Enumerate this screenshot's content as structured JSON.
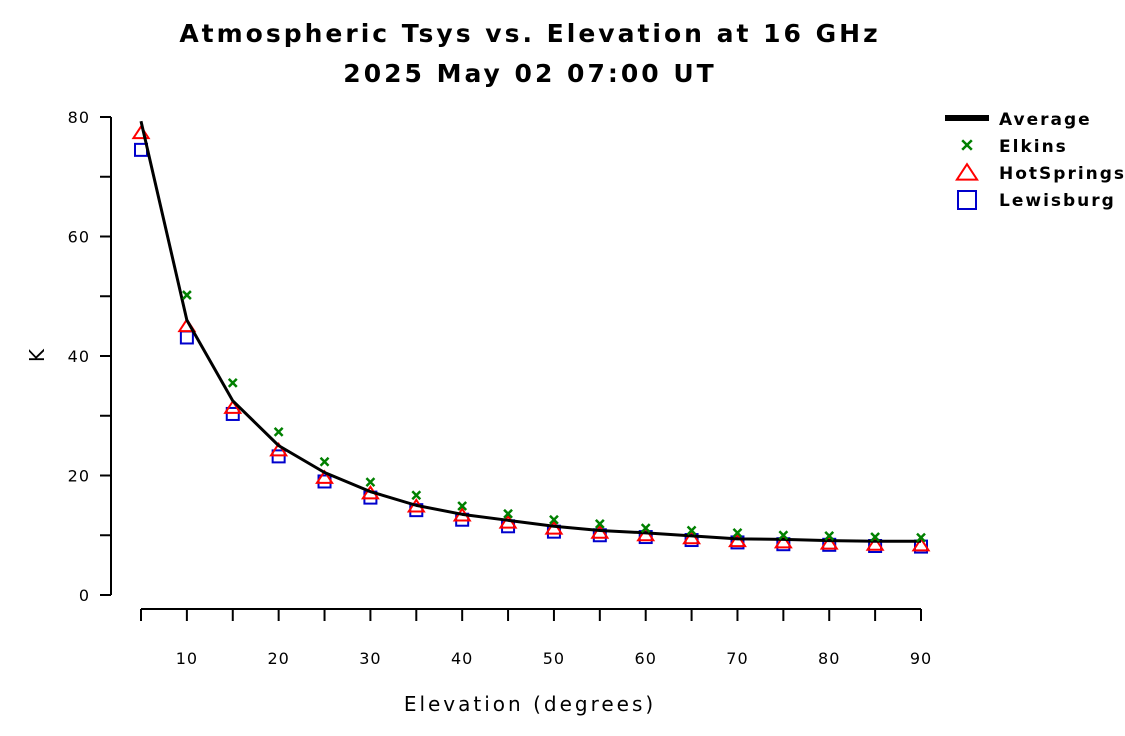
{
  "chart_data": {
    "type": "line",
    "title": "Atmospheric Tsys vs. Elevation at 16 GHz",
    "subtitle": "2025 May 02 07:00 UT",
    "xlabel": "Elevation (degrees)",
    "ylabel": "K",
    "xlim": [
      5,
      90
    ],
    "ylim": [
      0,
      80
    ],
    "x_ticks": [
      "10",
      "20",
      "30",
      "40",
      "50",
      "60",
      "70",
      "80",
      "90"
    ],
    "y_ticks": [
      "0",
      "20",
      "40",
      "60",
      "80"
    ],
    "x": [
      5,
      10,
      15,
      20,
      25,
      30,
      35,
      40,
      45,
      50,
      55,
      60,
      65,
      70,
      75,
      80,
      85,
      90
    ],
    "series": [
      {
        "name": "Average",
        "marker": "line",
        "color": "#000000",
        "values": [
          79.3,
          46.0,
          32.5,
          25.0,
          20.5,
          17.3,
          15.0,
          13.5,
          12.5,
          11.5,
          10.8,
          10.4,
          9.9,
          9.4,
          9.3,
          9.1,
          9.0,
          9.0
        ]
      },
      {
        "name": "Elkins",
        "marker": "x",
        "color": "#008000",
        "values": [
          null,
          50.2,
          35.5,
          27.3,
          22.3,
          18.9,
          16.7,
          14.9,
          13.6,
          12.6,
          11.9,
          11.2,
          10.8,
          10.4,
          10.0,
          9.9,
          9.7,
          9.6
        ]
      },
      {
        "name": "HotSprings",
        "marker": "triangle",
        "color": "#ff0000",
        "values": [
          77.3,
          45.0,
          31.3,
          24.2,
          19.6,
          17.0,
          14.8,
          13.3,
          12.1,
          11.1,
          10.4,
          10.0,
          9.5,
          9.0,
          8.8,
          8.6,
          8.4,
          8.3
        ]
      },
      {
        "name": "Lewisburg",
        "marker": "square",
        "color": "#0000cc",
        "values": [
          74.5,
          43.1,
          30.3,
          23.2,
          19.0,
          16.3,
          14.2,
          12.6,
          11.5,
          10.6,
          10.0,
          9.7,
          9.2,
          8.8,
          8.5,
          8.4,
          8.2,
          8.1
        ]
      }
    ],
    "legend": "top-right",
    "grid": false
  }
}
